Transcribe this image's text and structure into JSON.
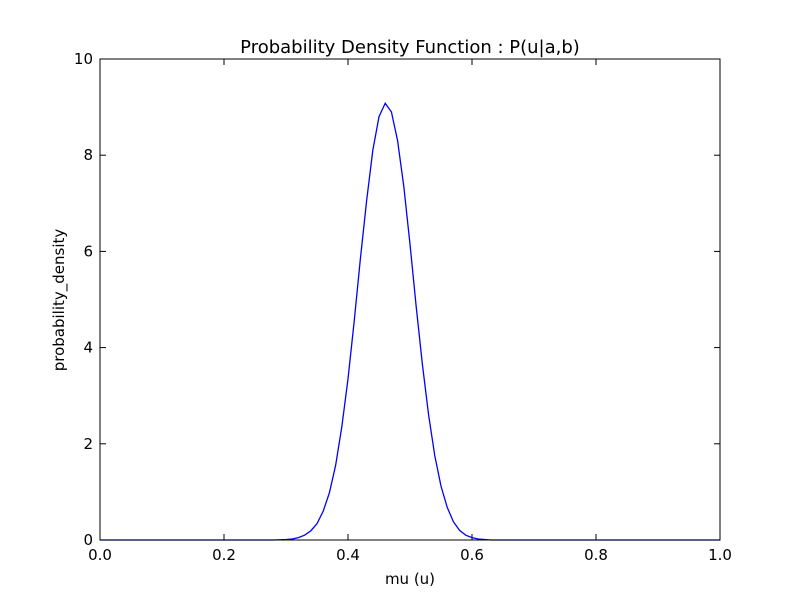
{
  "chart_data": {
    "type": "line",
    "title": "Probability Density Function : P(u|a,b)",
    "xlabel": "mu (u)",
    "ylabel": "probability_density",
    "xlim": [
      0.0,
      1.0
    ],
    "ylim": [
      0,
      10
    ],
    "x_ticks": [
      "0.0",
      "0.2",
      "0.4",
      "0.6",
      "0.8",
      "1.0"
    ],
    "y_ticks": [
      "0",
      "2",
      "4",
      "6",
      "8",
      "10"
    ],
    "grid": false,
    "legend": "none",
    "series": [
      {
        "color": "#0000ff",
        "x": [
          0.0,
          0.05,
          0.1,
          0.15,
          0.2,
          0.25,
          0.28,
          0.3,
          0.31,
          0.32,
          0.33,
          0.34,
          0.35,
          0.36,
          0.37,
          0.38,
          0.39,
          0.4,
          0.41,
          0.42,
          0.43,
          0.44,
          0.45,
          0.46,
          0.47,
          0.48,
          0.49,
          0.5,
          0.51,
          0.52,
          0.53,
          0.54,
          0.55,
          0.56,
          0.57,
          0.58,
          0.59,
          0.6,
          0.61,
          0.62,
          0.63,
          0.65,
          0.7,
          0.8,
          0.9,
          1.0
        ],
        "y": [
          0.0,
          0.0,
          0.0,
          0.0,
          0.0,
          0.0,
          0.0,
          0.01,
          0.02,
          0.05,
          0.1,
          0.19,
          0.34,
          0.6,
          0.98,
          1.55,
          2.35,
          3.35,
          4.55,
          5.85,
          7.05,
          8.1,
          8.8,
          9.08,
          8.9,
          8.3,
          7.35,
          6.15,
          4.85,
          3.65,
          2.6,
          1.75,
          1.12,
          0.68,
          0.38,
          0.2,
          0.1,
          0.05,
          0.02,
          0.01,
          0.0,
          0.0,
          0.0,
          0.0,
          0.0,
          0.0
        ]
      }
    ]
  }
}
